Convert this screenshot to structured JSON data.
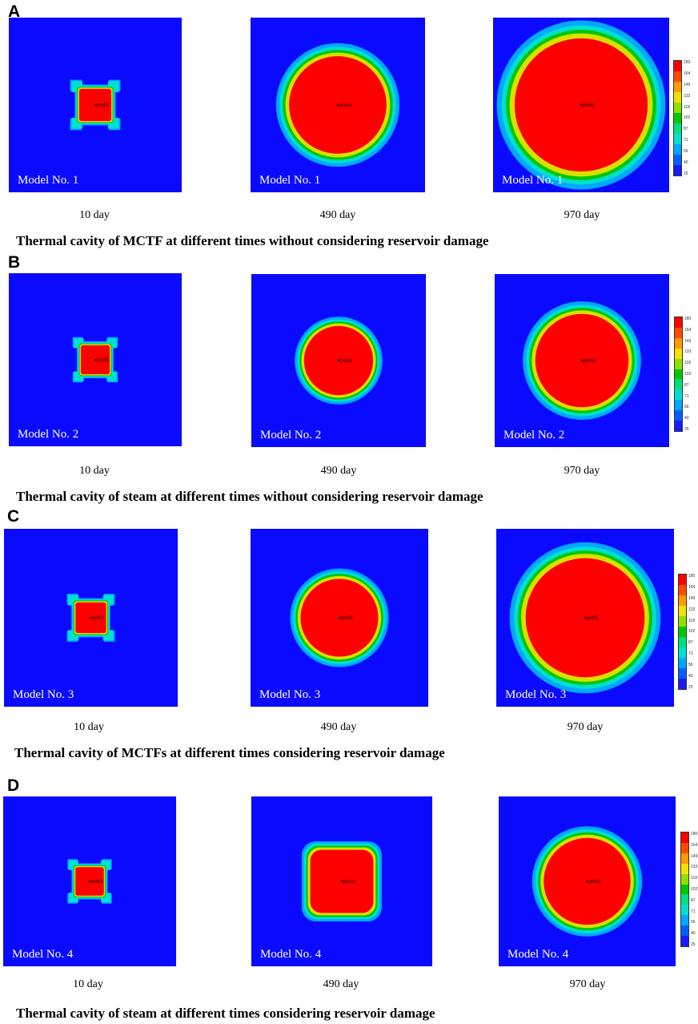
{
  "colors": {
    "background": "#0a0aff",
    "colorbar": [
      "#ff0000",
      "#ff4a00",
      "#ff9a00",
      "#f5e000",
      "#8fe000",
      "#00c800",
      "#00e07a",
      "#00e0d0",
      "#00a8ff",
      "#0060ff",
      "#1a1aff"
    ]
  },
  "colorbar_ticks": [
    "180",
    "164",
    "149",
    "133",
    "118",
    "102",
    "87",
    "71",
    "56",
    "40",
    "25"
  ],
  "well_label": "pro01",
  "panels": [
    {
      "letter": "A",
      "caption": "Thermal cavity of MCTF at different times without considering reservoir damage",
      "plots": [
        {
          "model_label": "Model No. 1",
          "time_label": "10 day",
          "shape": "cross",
          "cavity_size": 0.2
        },
        {
          "model_label": "Model No. 1",
          "time_label": "490 day",
          "shape": "circle",
          "cavity_size": 0.6
        },
        {
          "model_label": "Model No. 1",
          "time_label": "970 day",
          "shape": "circle",
          "cavity_size": 0.82
        }
      ]
    },
    {
      "letter": "B",
      "caption": "Thermal cavity of steam at different times without considering reservoir damage",
      "plots": [
        {
          "model_label": "Model No. 2",
          "time_label": "10 day",
          "shape": "cross",
          "cavity_size": 0.18
        },
        {
          "model_label": "Model No. 2",
          "time_label": "490 day",
          "shape": "circle",
          "cavity_size": 0.43
        },
        {
          "model_label": "Model No. 2",
          "time_label": "970 day",
          "shape": "circle",
          "cavity_size": 0.58
        }
      ]
    },
    {
      "letter": "C",
      "caption": "Thermal cavity of MCTFs at different times considering reservoir damage",
      "plots": [
        {
          "model_label": "Model No. 3",
          "time_label": "10 day",
          "shape": "cross",
          "cavity_size": 0.19
        },
        {
          "model_label": "Model No. 3",
          "time_label": "490 day",
          "shape": "circle",
          "cavity_size": 0.47
        },
        {
          "model_label": "Model No. 3",
          "time_label": "970 day",
          "shape": "circle",
          "cavity_size": 0.72
        }
      ]
    },
    {
      "letter": "D",
      "caption": "Thermal cavity of steam at different times considering reservoir damage",
      "plots": [
        {
          "model_label": "Model No. 4",
          "time_label": "10 day",
          "shape": "cross",
          "cavity_size": 0.18
        },
        {
          "model_label": "Model No. 4",
          "time_label": "490 day",
          "shape": "square",
          "cavity_size": 0.4
        },
        {
          "model_label": "Model No. 4",
          "time_label": "970 day",
          "shape": "circle",
          "cavity_size": 0.55
        }
      ]
    }
  ]
}
